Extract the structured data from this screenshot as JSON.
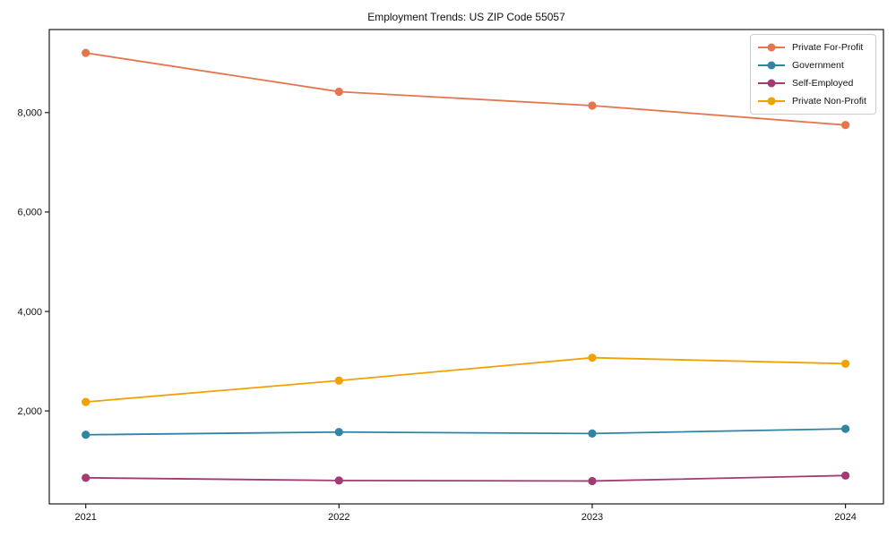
{
  "chart_data": {
    "type": "line",
    "title": "Employment Trends: US ZIP Code 55057",
    "categories": [
      "2021",
      "2022",
      "2023",
      "2024"
    ],
    "series": [
      {
        "name": "Private For-Profit",
        "color": "#e4764e",
        "values": [
          9200,
          8420,
          8140,
          7750
        ]
      },
      {
        "name": "Government",
        "color": "#3084a4",
        "values": [
          1520,
          1575,
          1545,
          1640
        ]
      },
      {
        "name": "Self-Employed",
        "color": "#a33a72",
        "values": [
          655,
          600,
          590,
          700
        ]
      },
      {
        "name": "Private Non-Profit",
        "color": "#f0a202",
        "values": [
          2180,
          2610,
          3070,
          2950
        ]
      }
    ],
    "xlabel": "",
    "ylabel": "",
    "ylim": [
      130,
      9670
    ],
    "yticks": [
      2000,
      4000,
      6000,
      8000
    ],
    "ytick_labels": [
      "2,000",
      "4,000",
      "6,000",
      "8,000"
    ],
    "grid": false,
    "legend_position": "top-right",
    "marker": "circle"
  }
}
